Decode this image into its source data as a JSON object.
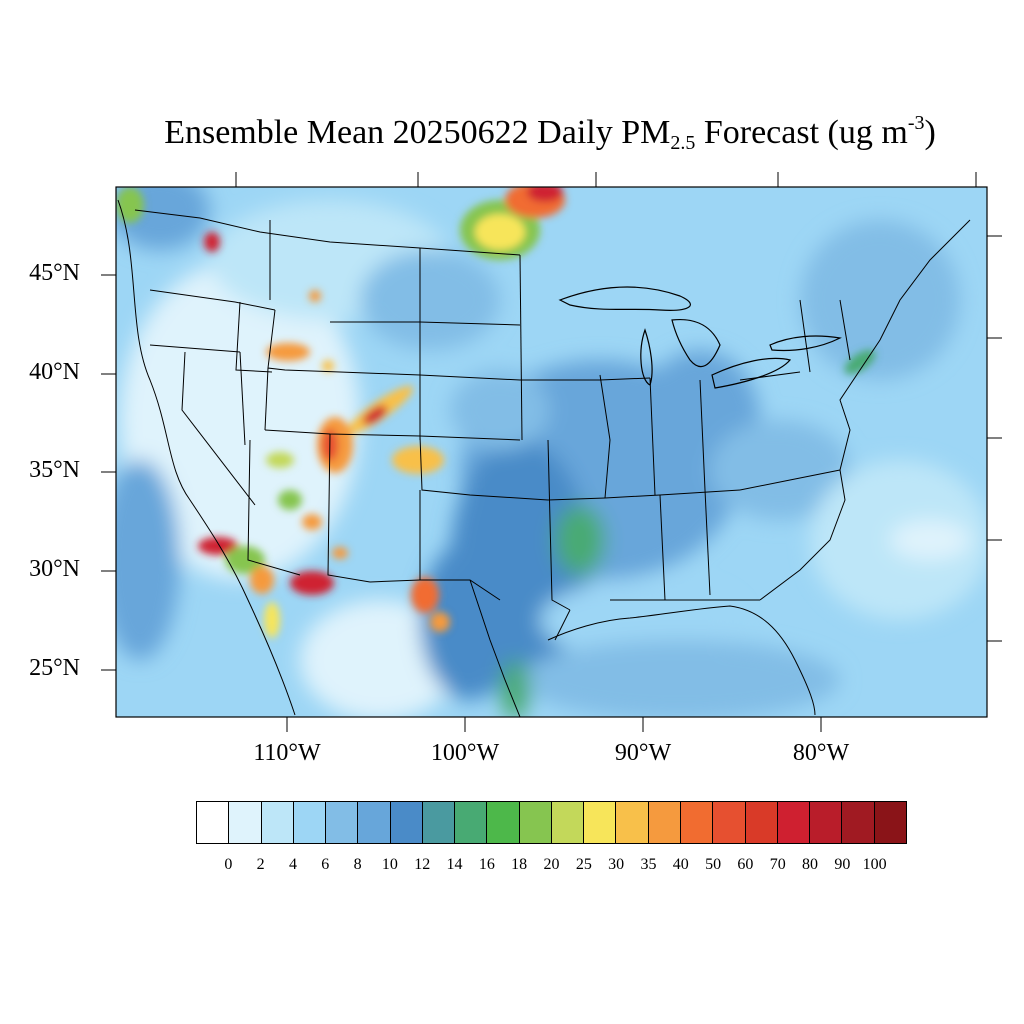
{
  "title": {
    "main": "Ensemble Mean 20250622 Daily PM",
    "subscript": "2.5",
    "unit_prefix": " Forecast (ug m",
    "superscript": "-3",
    "unit_suffix": ")"
  },
  "map": {
    "lat_labels": [
      "45°N",
      "40°N",
      "35°N",
      "30°N",
      "25°N"
    ],
    "lon_labels": [
      "110°W",
      "100°W",
      "90°W",
      "80°W"
    ]
  },
  "legend": {
    "levels": [
      "0",
      "2",
      "4",
      "6",
      "8",
      "10",
      "12",
      "14",
      "16",
      "18",
      "20",
      "25",
      "30",
      "35",
      "40",
      "50",
      "60",
      "70",
      "80",
      "90",
      "100"
    ],
    "colors": [
      "#ffffff",
      "#dff3fc",
      "#bde6f8",
      "#9dd6f5",
      "#82bde6",
      "#67a6da",
      "#4a8bc8",
      "#4a9aa0",
      "#48aa73",
      "#4db84a",
      "#86c550",
      "#c3d85a",
      "#f7e55a",
      "#f8c04a",
      "#f59a3e",
      "#f16c30",
      "#e65030",
      "#d93a28",
      "#cf2030",
      "#b91d2a",
      "#a01a22",
      "#8a1418"
    ]
  }
}
